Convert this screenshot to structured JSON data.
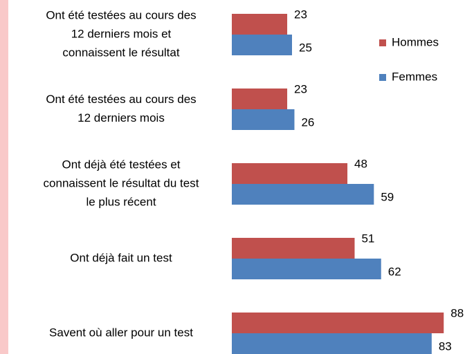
{
  "chart_data": {
    "type": "barh",
    "categories": [
      [
        "Ont été testées au cours des",
        "12 derniers mois et",
        "connaissent le résultat"
      ],
      [
        "Ont été testées au cours des",
        "12 derniers mois"
      ],
      [
        "Ont déjà été testées et",
        "connaissent le résultat du test",
        "le plus récent"
      ],
      [
        "Ont déjà fait un test"
      ],
      [
        "Savent où aller pour un test"
      ]
    ],
    "series": [
      {
        "name": "Hommes",
        "color": "#c0504d",
        "values": [
          23,
          23,
          48,
          51,
          88
        ]
      },
      {
        "name": "Femmes",
        "color": "#4f81bd",
        "values": [
          25,
          26,
          59,
          62,
          83
        ]
      }
    ],
    "xlim": [
      0,
      100
    ]
  }
}
